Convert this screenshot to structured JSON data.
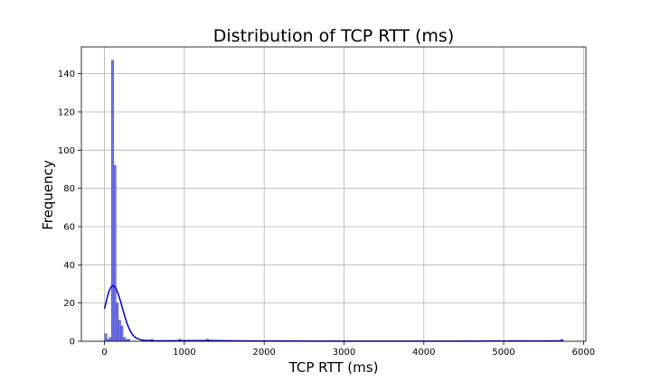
{
  "chart_data": {
    "type": "bar",
    "subtype": "histogram_with_kde",
    "title": "Distribution of TCP RTT (ms)",
    "xlabel": "TCP RTT (ms)",
    "ylabel": "Frequency",
    "xlim": [
      -290,
      6030
    ],
    "ylim": [
      0,
      154
    ],
    "xticks": [
      0,
      1000,
      2000,
      3000,
      4000,
      5000,
      6000
    ],
    "yticks": [
      0,
      20,
      40,
      60,
      80,
      100,
      120,
      140
    ],
    "grid": true,
    "bar_color": "#5b5be8",
    "kde_color": "#0000cc",
    "bin_width": 29,
    "bins": [
      {
        "x": 0,
        "count": 4
      },
      {
        "x": 29,
        "count": 1
      },
      {
        "x": 58,
        "count": 2
      },
      {
        "x": 87,
        "count": 147
      },
      {
        "x": 116,
        "count": 92
      },
      {
        "x": 145,
        "count": 20
      },
      {
        "x": 174,
        "count": 11
      },
      {
        "x": 203,
        "count": 8
      },
      {
        "x": 232,
        "count": 2
      },
      {
        "x": 261,
        "count": 1
      },
      {
        "x": 290,
        "count": 1
      },
      {
        "x": 580,
        "count": 1
      },
      {
        "x": 928,
        "count": 1
      },
      {
        "x": 1276,
        "count": 1
      },
      {
        "x": 5713,
        "count": 1
      }
    ],
    "kde": {
      "x": [
        0,
        20,
        40,
        60,
        80,
        100,
        120,
        140,
        160,
        180,
        200,
        220,
        240,
        260,
        280,
        300,
        330,
        360,
        400,
        450,
        500,
        600,
        800,
        1000,
        1300,
        2000,
        3000,
        4000,
        5000,
        5750
      ],
      "y": [
        17,
        20.5,
        24,
        26.5,
        28.3,
        29,
        28.8,
        27.8,
        26,
        23.7,
        21,
        18,
        15,
        12.2,
        9.6,
        7.4,
        4.8,
        3,
        1.6,
        0.8,
        0.45,
        0.3,
        0.25,
        0.3,
        0.35,
        0.1,
        0.05,
        0.05,
        0.1,
        0.15
      ]
    }
  }
}
